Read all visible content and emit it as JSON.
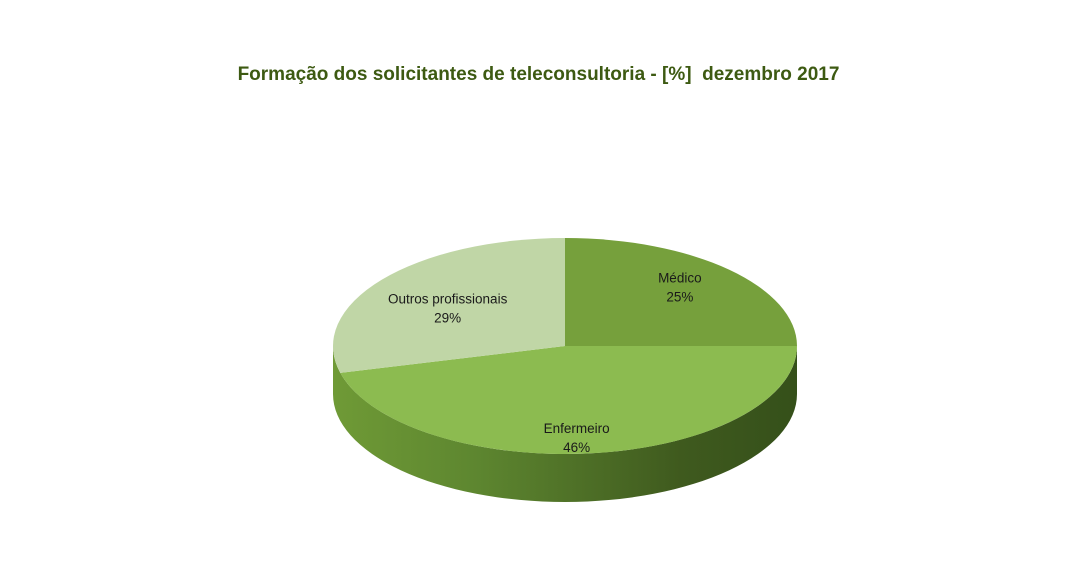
{
  "chart_data": {
    "type": "pie",
    "title": "Formação dos solicitantes de teleconsultoria - [%]  dezembro 2017",
    "categories": [
      "Médico",
      "Enfermeiro",
      "Outros profissionais"
    ],
    "values": [
      25,
      46,
      29
    ],
    "value_labels": [
      "25%",
      "46%",
      "29%"
    ],
    "colors": [
      "#76a03c",
      "#8cbb50",
      "#c0d6a6"
    ],
    "side_colors": [
      "#4d6a24",
      "#5b7e2e",
      "#8fa87a"
    ],
    "style": "3d-pie",
    "legend": "none"
  }
}
